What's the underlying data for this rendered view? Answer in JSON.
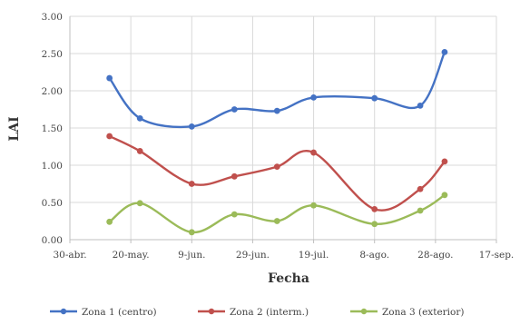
{
  "chart_data": {
    "type": "line",
    "title": "",
    "xlabel": "Fecha",
    "ylabel": "LAI",
    "x_tick_labels": [
      "30-abr.",
      "20-may.",
      "9-jun.",
      "29-jun.",
      "19-jul.",
      "8-ago.",
      "28-ago.",
      "17-sep."
    ],
    "x_tick_dates": [
      "2019-04-30",
      "2019-05-20",
      "2019-06-09",
      "2019-06-29",
      "2019-07-19",
      "2019-08-08",
      "2019-08-28",
      "2019-09-17"
    ],
    "y_tick_labels": [
      "0.00",
      "0.50",
      "1.00",
      "1.50",
      "2.00",
      "2.50",
      "3.00"
    ],
    "ylim": [
      0,
      3
    ],
    "xlim": [
      "2019-04-30",
      "2019-09-17"
    ],
    "grid": "vertical and horizontal",
    "legend_position": "bottom",
    "x": [
      "2019-05-13",
      "2019-05-23",
      "2019-06-09",
      "2019-06-23",
      "2019-07-07",
      "2019-07-19",
      "2019-08-08",
      "2019-08-23",
      "2019-08-31"
    ],
    "series": [
      {
        "name": "Zona 1 (centro)",
        "color": "#4472c4",
        "values": [
          2.17,
          1.63,
          1.52,
          1.75,
          1.73,
          1.91,
          1.9,
          1.8,
          2.52
        ]
      },
      {
        "name": "Zona 2 (interm.)",
        "color": "#c0504d",
        "values": [
          1.39,
          1.19,
          0.75,
          0.85,
          0.98,
          1.17,
          0.41,
          0.68,
          1.05
        ]
      },
      {
        "name": "Zona 3 (exterior)",
        "color": "#9bbb59",
        "values": [
          0.24,
          0.49,
          0.1,
          0.34,
          0.25,
          0.46,
          0.21,
          0.39,
          0.6
        ]
      }
    ]
  }
}
